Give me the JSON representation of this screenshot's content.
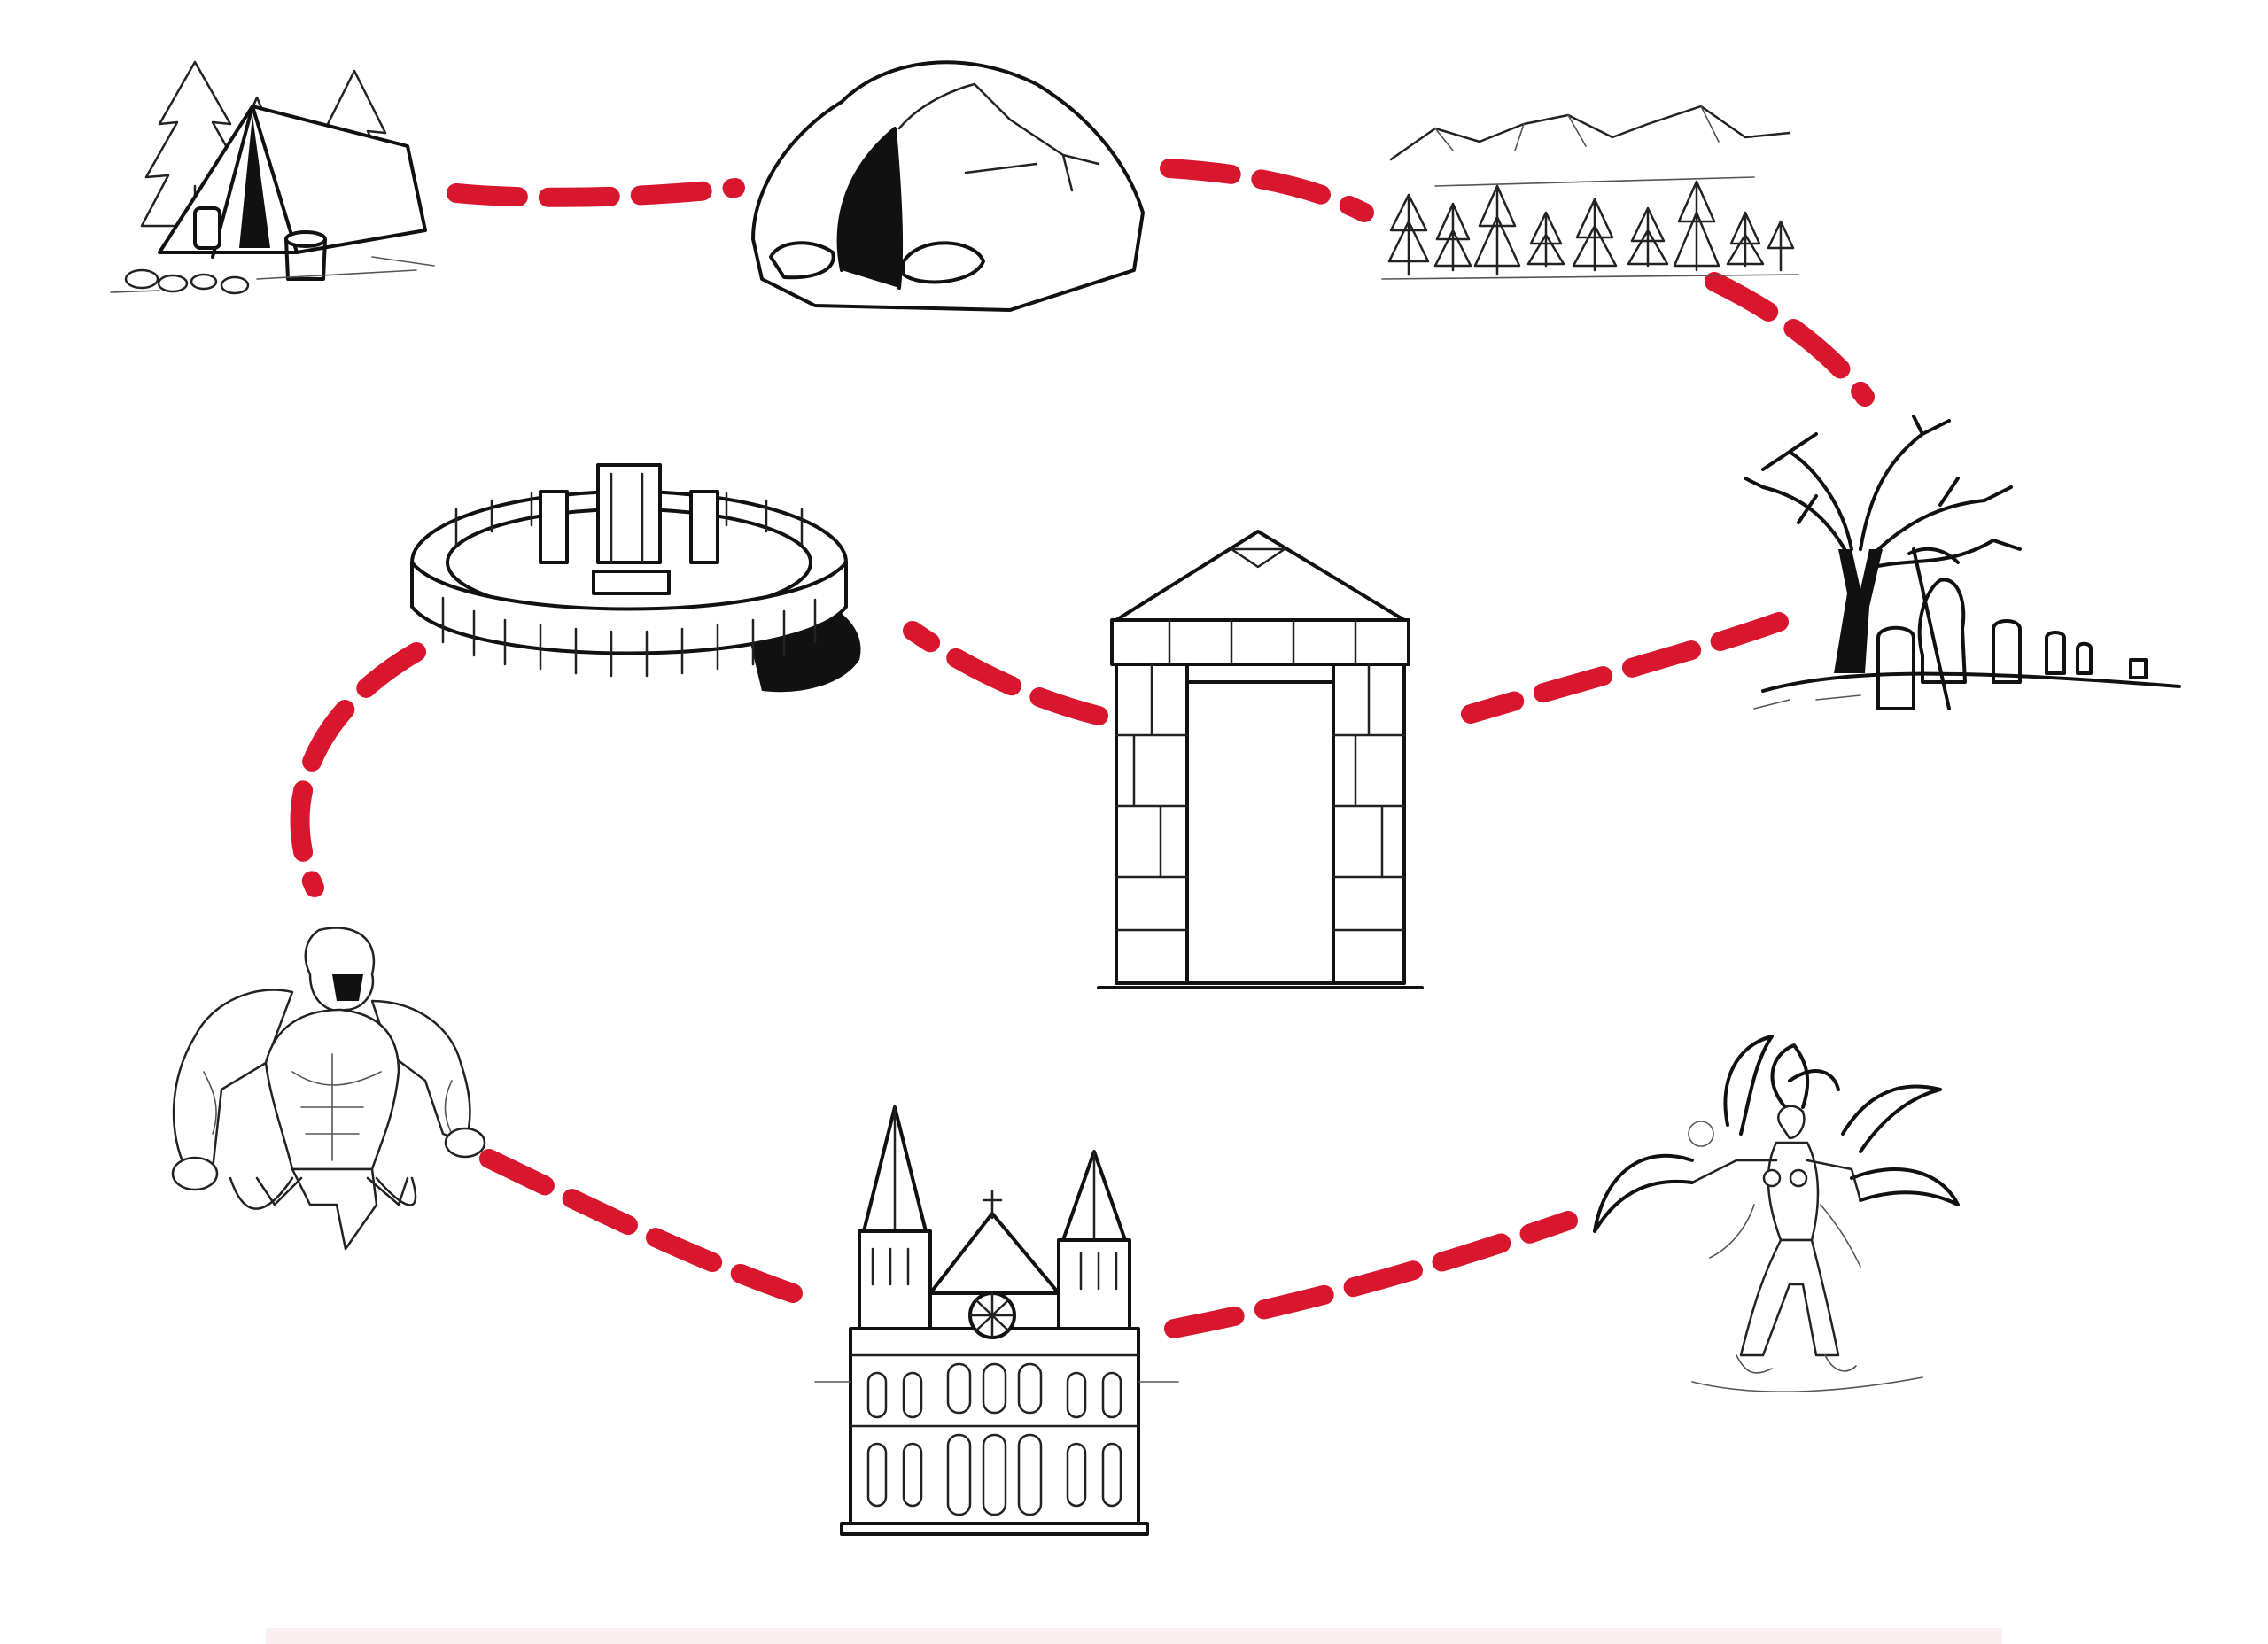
{
  "board": {
    "background": "#ffffff",
    "path_color": "#d8172e"
  },
  "locations": [
    {
      "id": "camp",
      "icon": "tent-camp-icon"
    },
    {
      "id": "cave",
      "icon": "cave-icon"
    },
    {
      "id": "forest",
      "icon": "pine-forest-mountains-icon"
    },
    {
      "id": "graveyard",
      "icon": "graveyard-reaper-icon"
    },
    {
      "id": "gate",
      "icon": "stone-gate-icon"
    },
    {
      "id": "stonehenge",
      "icon": "stone-circle-icon"
    },
    {
      "id": "ogre",
      "icon": "ogre-monster-icon"
    },
    {
      "id": "cathedral",
      "icon": "cathedral-icon"
    },
    {
      "id": "demon",
      "icon": "demon-boss-icon"
    }
  ],
  "route": [
    "camp",
    "cave",
    "forest",
    "graveyard",
    "gate",
    "stonehenge",
    "ogre",
    "cathedral",
    "demon"
  ]
}
